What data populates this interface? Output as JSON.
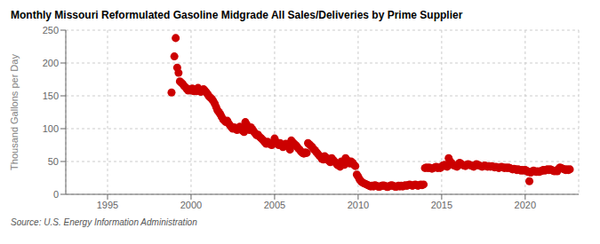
{
  "chart_data": {
    "type": "scatter",
    "title": "Monthly Missouri Reformulated Gasoline Midgrade All Sales/Deliveries by Prime Supplier",
    "ylabel": "Thousand Gallons per Day",
    "annotations": [
      "Source: U.S. Energy Information Administration"
    ],
    "color": "#cc0000",
    "marker": "o",
    "grid": true,
    "xlim": [
      1992.5,
      2023.2
    ],
    "xticks": [
      1995,
      2000,
      2005,
      2010,
      2015,
      2020
    ],
    "ylim": [
      0,
      250
    ],
    "yticks": [
      0,
      50,
      100,
      150,
      200,
      250
    ],
    "x": [
      1998.83,
      1999.0,
      1999.08,
      1999.17,
      1999.25,
      1999.33,
      1999.42,
      1999.5,
      1999.58,
      1999.67,
      1999.75,
      1999.83,
      1999.92,
      2000.0,
      2000.08,
      2000.17,
      2000.25,
      2000.33,
      2000.42,
      2000.5,
      2000.58,
      2000.67,
      2000.75,
      2000.83,
      2000.92,
      2001.0,
      2001.08,
      2001.17,
      2001.25,
      2001.33,
      2001.42,
      2001.5,
      2001.58,
      2001.67,
      2001.75,
      2001.83,
      2001.92,
      2002.0,
      2002.08,
      2002.17,
      2002.25,
      2002.33,
      2002.42,
      2002.5,
      2002.58,
      2002.67,
      2002.75,
      2002.83,
      2002.92,
      2003.0,
      2003.08,
      2003.17,
      2003.25,
      2003.33,
      2003.42,
      2003.5,
      2003.58,
      2003.67,
      2003.75,
      2003.83,
      2003.92,
      2004.0,
      2004.08,
      2004.17,
      2004.25,
      2004.33,
      2004.42,
      2004.5,
      2004.58,
      2004.67,
      2004.75,
      2004.83,
      2004.92,
      2005.0,
      2005.08,
      2005.17,
      2005.25,
      2005.33,
      2005.42,
      2005.5,
      2005.58,
      2005.67,
      2005.75,
      2005.83,
      2005.92,
      2006.0,
      2006.08,
      2006.17,
      2006.25,
      2006.33,
      2006.42,
      2006.5,
      2006.58,
      2006.67,
      2006.75,
      2006.83,
      2006.92,
      2007.0,
      2007.08,
      2007.17,
      2007.25,
      2007.33,
      2007.42,
      2007.5,
      2007.58,
      2007.67,
      2007.75,
      2007.83,
      2007.92,
      2008.0,
      2008.08,
      2008.17,
      2008.25,
      2008.33,
      2008.42,
      2008.5,
      2008.58,
      2008.67,
      2008.75,
      2008.83,
      2008.92,
      2009.0,
      2009.08,
      2009.17,
      2009.25,
      2009.33,
      2009.42,
      2009.5,
      2009.58,
      2009.67,
      2009.75,
      2009.83,
      2009.92,
      2010.0,
      2010.08,
      2010.17,
      2010.25,
      2010.33,
      2010.42,
      2010.5,
      2010.58,
      2010.67,
      2010.75,
      2010.83,
      2010.92,
      2011.0,
      2011.08,
      2011.17,
      2011.25,
      2011.33,
      2011.42,
      2011.5,
      2011.58,
      2011.67,
      2011.75,
      2011.83,
      2011.92,
      2012.0,
      2012.08,
      2012.17,
      2012.25,
      2012.33,
      2012.42,
      2012.5,
      2012.58,
      2012.67,
      2012.75,
      2012.83,
      2012.92,
      2013.0,
      2013.08,
      2013.17,
      2013.25,
      2013.33,
      2013.42,
      2013.5,
      2013.58,
      2013.67,
      2013.75,
      2013.83,
      2013.92,
      2014.0,
      2014.08,
      2014.17,
      2014.25,
      2014.33,
      2014.42,
      2014.5,
      2014.58,
      2014.67,
      2014.75,
      2014.83,
      2014.92,
      2015.0,
      2015.08,
      2015.17,
      2015.25,
      2015.33,
      2015.42,
      2015.5,
      2015.58,
      2015.67,
      2015.75,
      2015.83,
      2015.92,
      2016.0,
      2016.08,
      2016.17,
      2016.25,
      2016.33,
      2016.42,
      2016.5,
      2016.58,
      2016.67,
      2016.75,
      2016.83,
      2016.92,
      2017.0,
      2017.08,
      2017.17,
      2017.25,
      2017.33,
      2017.42,
      2017.5,
      2017.58,
      2017.67,
      2017.75,
      2017.83,
      2017.92,
      2018.0,
      2018.08,
      2018.17,
      2018.25,
      2018.33,
      2018.42,
      2018.5,
      2018.58,
      2018.67,
      2018.75,
      2018.83,
      2018.92,
      2019.0,
      2019.08,
      2019.17,
      2019.25,
      2019.33,
      2019.42,
      2019.5,
      2019.58,
      2019.67,
      2019.75,
      2019.83,
      2019.92,
      2020.0,
      2020.08,
      2020.17,
      2020.25,
      2020.33,
      2020.42,
      2020.5,
      2020.58,
      2020.67,
      2020.75,
      2020.83,
      2020.92,
      2021.0,
      2021.08,
      2021.17,
      2021.25,
      2021.33,
      2021.42,
      2021.5,
      2021.58,
      2021.67,
      2021.75,
      2021.83,
      2021.92,
      2022.0,
      2022.08,
      2022.17,
      2022.25,
      2022.33,
      2022.42,
      2022.5,
      2022.58,
      2022.67
    ],
    "values": [
      155,
      210,
      238,
      193,
      185,
      172,
      170,
      168,
      165,
      163,
      160,
      158,
      160,
      158,
      161,
      157,
      160,
      157,
      162,
      159,
      156,
      157,
      160,
      158,
      155,
      152,
      149,
      147,
      145,
      142,
      138,
      133,
      128,
      125,
      122,
      118,
      114,
      112,
      110,
      112,
      108,
      105,
      102,
      100,
      102,
      100,
      98,
      100,
      103,
      100,
      97,
      95,
      110,
      106,
      101,
      98,
      102,
      99,
      96,
      93,
      90,
      91,
      88,
      86,
      84,
      82,
      79,
      77,
      80,
      78,
      76,
      75,
      78,
      85,
      80,
      77,
      75,
      78,
      75,
      72,
      74,
      77,
      74,
      72,
      68,
      82,
      79,
      77,
      75,
      73,
      70,
      68,
      65,
      63,
      62,
      64,
      63,
      78,
      76,
      74,
      72,
      69,
      67,
      64,
      62,
      59,
      57,
      54,
      53,
      58,
      56,
      53,
      51,
      49,
      55,
      52,
      50,
      48,
      45,
      44,
      42,
      50,
      48,
      45,
      55,
      52,
      49,
      47,
      50,
      48,
      45,
      43,
      30,
      27,
      23,
      20,
      18,
      17,
      16,
      15,
      14,
      13,
      12,
      13,
      12,
      14,
      13,
      12,
      11.5,
      12,
      13,
      13.5,
      13,
      12,
      11,
      12,
      13,
      14,
      13,
      12,
      11.5,
      12,
      13,
      12,
      13,
      12,
      13,
      14,
      13,
      14,
      15,
      14,
      13,
      14,
      15,
      14,
      13,
      14,
      15,
      14,
      15,
      40,
      41,
      40,
      41,
      40,
      39,
      40,
      41,
      42,
      40,
      41,
      40,
      42,
      44,
      45,
      43,
      42,
      55,
      50,
      48,
      45,
      44,
      43,
      42,
      46,
      48,
      46,
      45,
      44,
      43,
      45,
      46,
      45,
      44,
      43,
      42,
      44,
      46,
      45,
      44,
      43,
      42,
      43,
      44,
      43,
      42,
      43,
      42,
      43,
      42,
      41,
      42,
      41,
      40,
      41,
      42,
      41,
      40,
      41,
      40,
      41,
      40,
      39,
      38,
      39,
      38,
      37,
      38,
      37,
      36,
      37,
      36,
      37,
      36,
      34,
      20,
      33,
      35,
      36,
      35,
      34,
      35,
      34,
      35,
      36,
      37,
      36,
      37,
      38,
      37,
      38,
      37,
      36,
      35,
      36,
      35,
      39,
      41,
      40,
      39,
      38,
      37,
      38,
      37,
      38
    ]
  }
}
